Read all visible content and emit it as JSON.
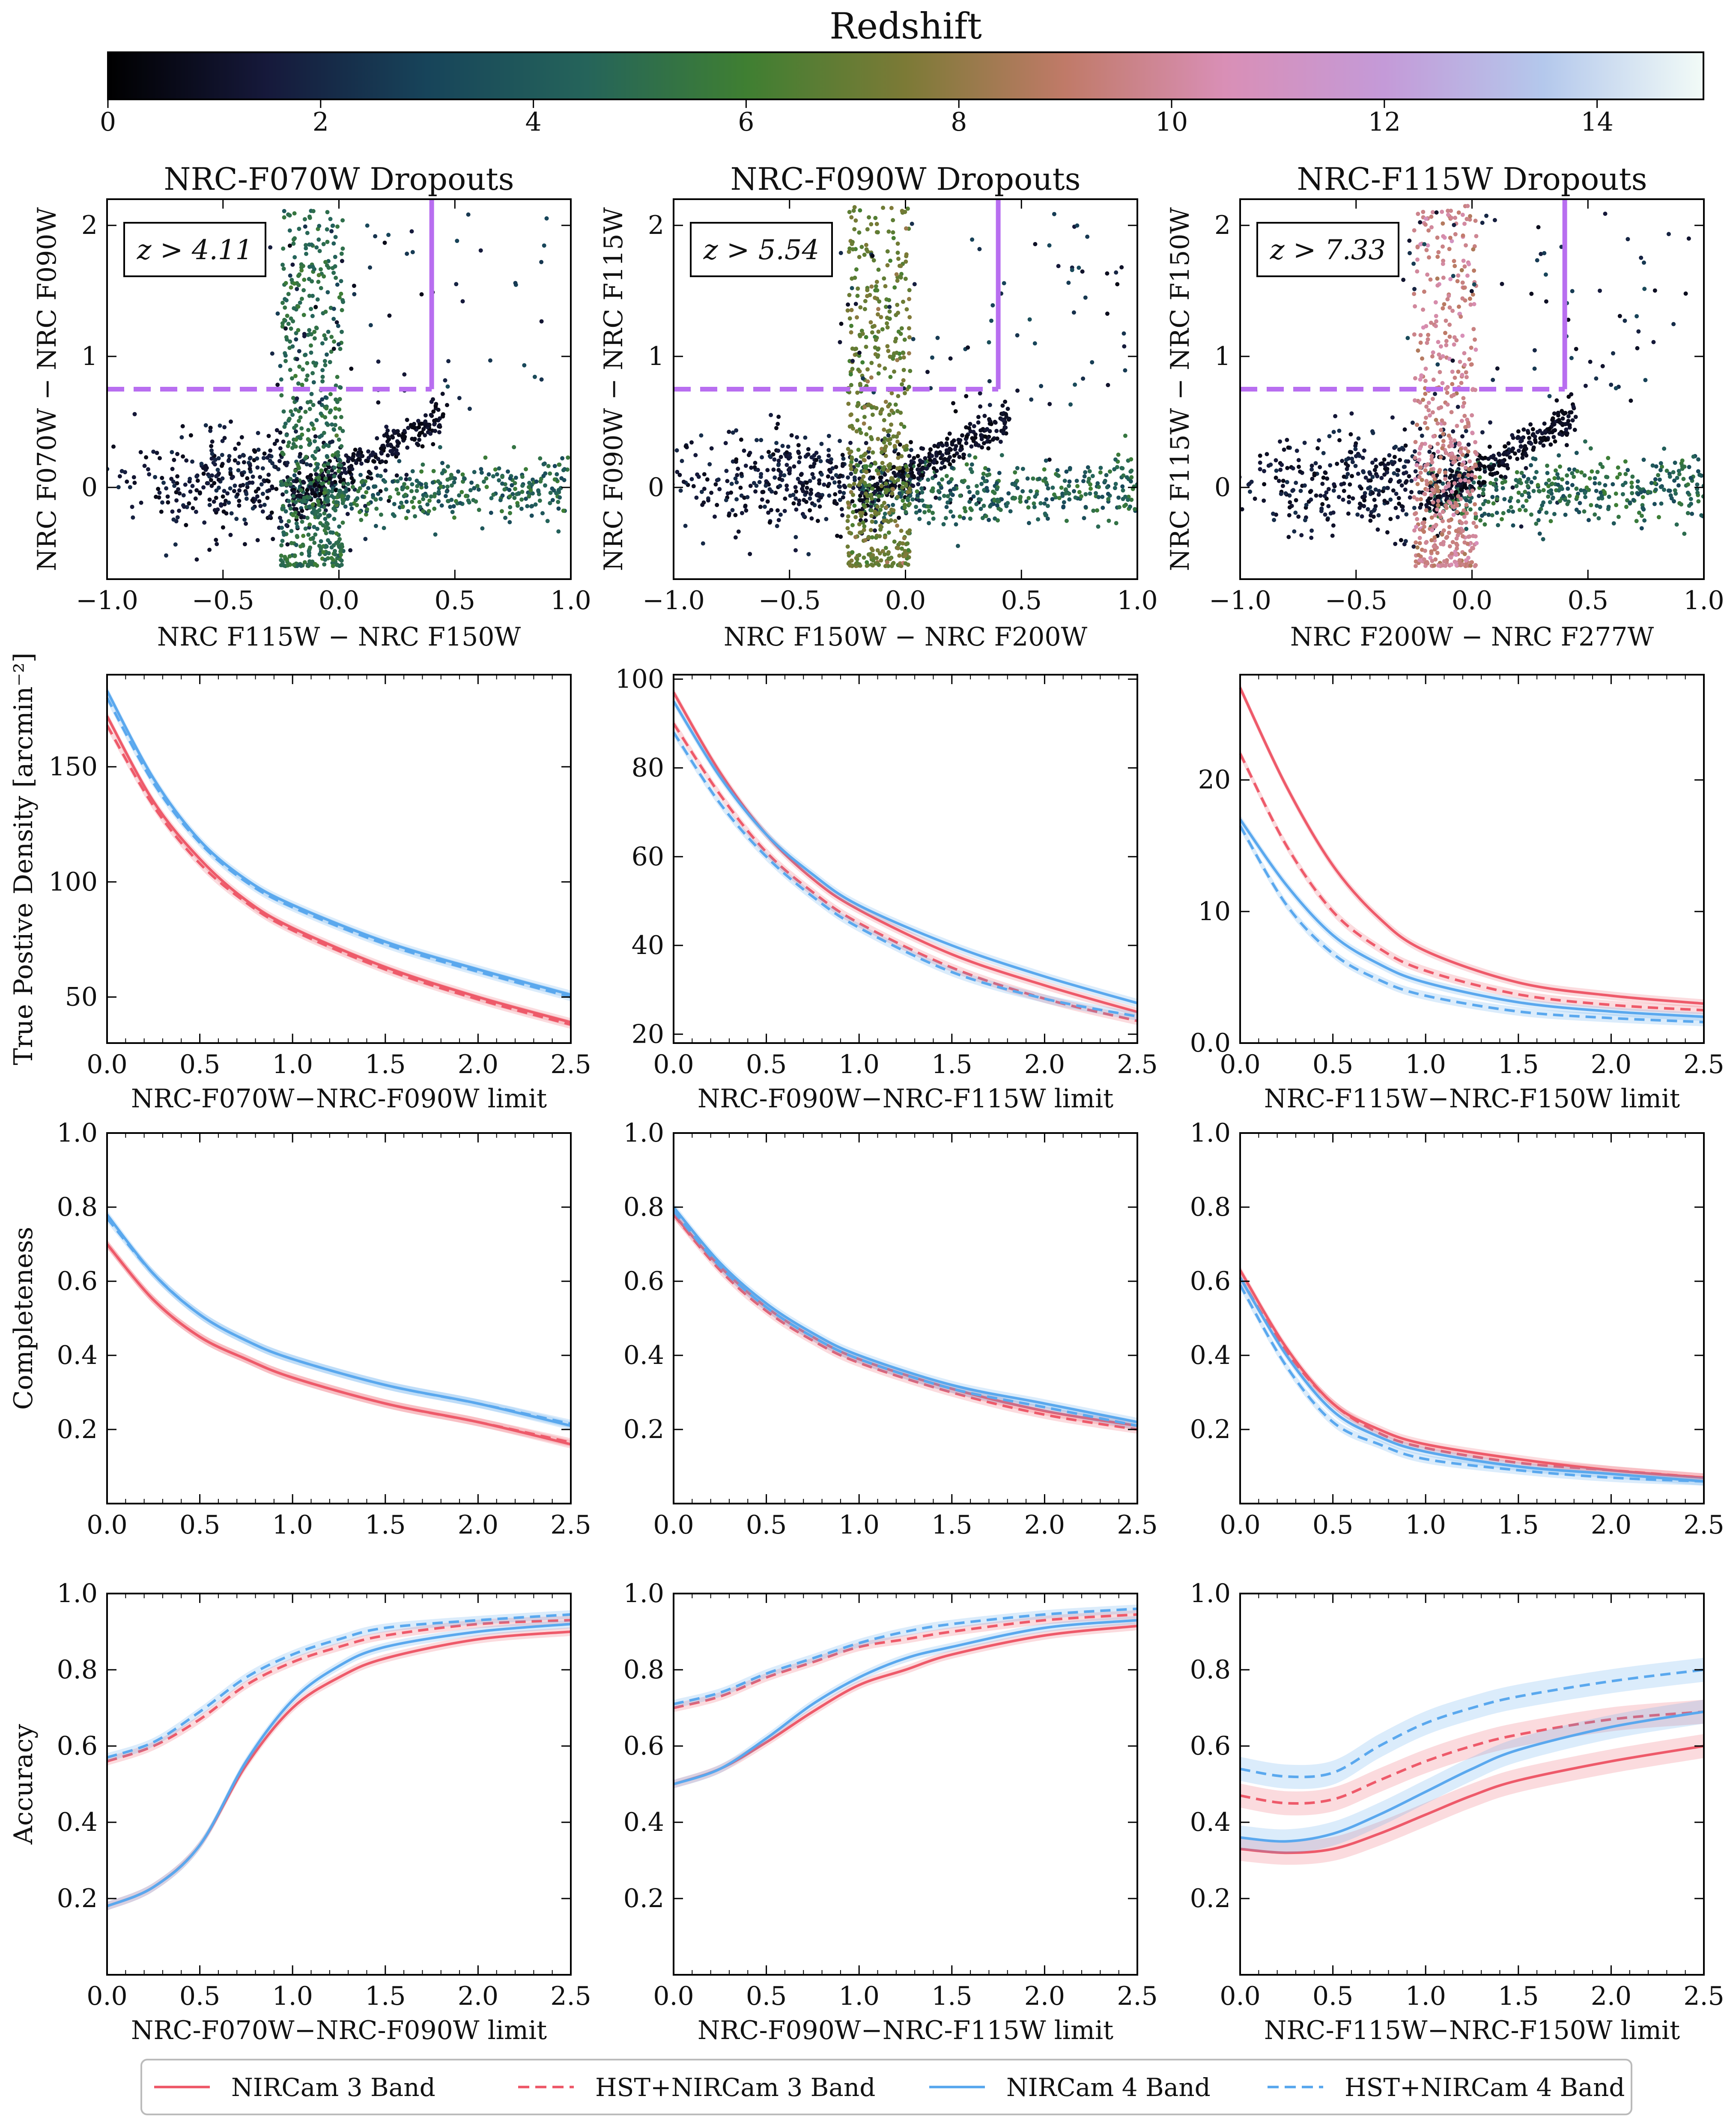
{
  "colorbar": {
    "title": "Redshift",
    "ticks": [
      "0",
      "2",
      "4",
      "6",
      "8",
      "10",
      "12",
      "14"
    ],
    "range": [
      0,
      15
    ],
    "stops": [
      "#000000",
      "#16193b",
      "#17445a",
      "#25645a",
      "#3f7f32",
      "#7c7a36",
      "#c07a68",
      "#d98fb6",
      "#c49ad8",
      "#b4c8ec",
      "#f2fbf7"
    ]
  },
  "colors": {
    "nircam3": "#ee5a6a",
    "hst3": "#ee5a6a",
    "nircam4": "#5aa8ee",
    "hst4": "#5aa8ee",
    "selection": "#b86ef0"
  },
  "legend": {
    "nircam3": "NIRCam 3 Band",
    "hst3": "HST+NIRCam 3 Band",
    "nircam4": "NIRCam 4 Band",
    "hst4": "HST+NIRCam 4 Band"
  },
  "chart_data": [
    {
      "type": "scatter",
      "title": "NRC-F070W Dropouts",
      "xlabel": "NRC F115W − NRC F150W",
      "ylabel": "NRC F070W − NRC F090W",
      "xlim": [
        -1.0,
        1.0
      ],
      "ylim": [
        -0.7,
        2.2
      ],
      "xticks": [
        "−1.0",
        "−0.5",
        "0.0",
        "0.5",
        "1.0"
      ],
      "yticks": [
        "0",
        "1",
        "2"
      ],
      "annotation": "z > 4.11",
      "cut": {
        "color_min": 0.75,
        "x_max": 0.4
      },
      "dropout_z": 5
    },
    {
      "type": "scatter",
      "title": "NRC-F090W Dropouts",
      "xlabel": "NRC F150W − NRC F200W",
      "ylabel": "NRC F090W − NRC F115W",
      "xlim": [
        -1.0,
        1.0
      ],
      "ylim": [
        -0.7,
        2.2
      ],
      "xticks": [
        "−1.0",
        "−0.5",
        "0.0",
        "0.5",
        "1.0"
      ],
      "yticks": [
        "0",
        "1",
        "2"
      ],
      "annotation": "z > 5.54",
      "cut": {
        "color_min": 0.75,
        "x_max": 0.4
      },
      "dropout_z": 7
    },
    {
      "type": "scatter",
      "title": "NRC-F115W Dropouts",
      "xlabel": "NRC F200W − NRC F277W",
      "ylabel": "NRC F115W − NRC F150W",
      "xlim": [
        -1.0,
        1.0
      ],
      "ylim": [
        -0.7,
        2.2
      ],
      "xticks": [
        "−1.0",
        "−0.5",
        "0.0",
        "0.5",
        "1.0"
      ],
      "yticks": [
        "0",
        "1",
        "2"
      ],
      "annotation": "z > 7.33",
      "cut": {
        "color_min": 0.75,
        "x_max": 0.4
      },
      "dropout_z": 9.6
    },
    {
      "type": "line",
      "xlabel": "NRC-F070W−NRC-F090W limit",
      "ylabel": "True Postive Density [arcmin⁻²]",
      "xlim": [
        0,
        2.5
      ],
      "ylim": [
        30,
        190
      ],
      "yticks": [
        50,
        100,
        150
      ],
      "xticks": [
        "0.0",
        "0.5",
        "1.0",
        "1.5",
        "2.0",
        "2.5"
      ],
      "x": [
        0,
        0.25,
        0.5,
        0.75,
        1.0,
        1.5,
        2.0,
        2.5
      ],
      "series": [
        {
          "name": "NIRCam 3 Band",
          "key": "nircam3",
          "dash": false,
          "values": [
            172,
            135,
            110,
            92,
            80,
            63,
            50,
            39
          ]
        },
        {
          "name": "HST+NIRCam 3 Band",
          "key": "hst3",
          "dash": true,
          "values": [
            168,
            133,
            108,
            91,
            79,
            62,
            49,
            38
          ]
        },
        {
          "name": "NIRCam 4 Band",
          "key": "nircam4",
          "dash": false,
          "values": [
            183,
            145,
            118,
            101,
            90,
            74,
            62,
            51
          ]
        },
        {
          "name": "HST+NIRCam 4 Band",
          "key": "hst4",
          "dash": true,
          "values": [
            180,
            143,
            117,
            100,
            89,
            73,
            61,
            50
          ]
        }
      ]
    },
    {
      "type": "line",
      "xlabel": "NRC-F090W−NRC-F115W limit",
      "ylabel": "",
      "xlim": [
        0,
        2.5
      ],
      "ylim": [
        18,
        101
      ],
      "yticks": [
        20,
        40,
        60,
        80,
        100
      ],
      "xticks": [
        "0.0",
        "0.5",
        "1.0",
        "1.5",
        "2.0",
        "2.5"
      ],
      "x": [
        0,
        0.25,
        0.5,
        0.75,
        1.0,
        1.5,
        2.0,
        2.5
      ],
      "series": [
        {
          "name": "NIRCam 3 Band",
          "key": "nircam3",
          "dash": false,
          "values": [
            97,
            79,
            65,
            55,
            48,
            38,
            31,
            25
          ]
        },
        {
          "name": "HST+NIRCam 3 Band",
          "key": "hst3",
          "dash": true,
          "values": [
            90,
            74,
            61,
            52,
            45,
            35,
            28,
            23
          ]
        },
        {
          "name": "NIRCam 4 Band",
          "key": "nircam4",
          "dash": false,
          "values": [
            95,
            78,
            65,
            56,
            49,
            40,
            33,
            27
          ]
        },
        {
          "name": "HST+NIRCam 4 Band",
          "key": "hst4",
          "dash": true,
          "values": [
            88,
            72,
            60,
            51,
            44,
            34,
            28,
            24
          ]
        }
      ]
    },
    {
      "type": "line",
      "xlabel": "NRC-F115W−NRC-F150W limit",
      "ylabel": "",
      "xlim": [
        0,
        2.5
      ],
      "ylim": [
        0,
        28
      ],
      "yticks": [
        0,
        10,
        20
      ],
      "xticks": [
        "0.0",
        "0.5",
        "1.0",
        "1.5",
        "2.0",
        "2.5"
      ],
      "x": [
        0,
        0.25,
        0.5,
        0.75,
        1.0,
        1.5,
        2.0,
        2.5
      ],
      "series": [
        {
          "name": "NIRCam 3 Band",
          "key": "nircam3",
          "dash": false,
          "values": [
            27,
            19.5,
            13.5,
            9.5,
            7.0,
            4.6,
            3.6,
            3.0
          ]
        },
        {
          "name": "HST+NIRCam 3 Band",
          "key": "hst3",
          "dash": true,
          "values": [
            22,
            15,
            10,
            7.2,
            5.5,
            3.7,
            2.9,
            2.5
          ]
        },
        {
          "name": "NIRCam 4 Band",
          "key": "nircam4",
          "dash": false,
          "values": [
            17,
            12,
            8.2,
            6.0,
            4.6,
            3.1,
            2.4,
            2.0
          ]
        },
        {
          "name": "HST+NIRCam 4 Band",
          "key": "hst4",
          "dash": true,
          "values": [
            16.5,
            10.5,
            6.8,
            4.8,
            3.6,
            2.4,
            1.9,
            1.6
          ]
        }
      ]
    },
    {
      "type": "line",
      "xlabel": "",
      "ylabel": "Completeness",
      "xlim": [
        0,
        2.5
      ],
      "ylim": [
        0,
        1.0
      ],
      "yticks": [
        0.2,
        0.4,
        0.6,
        0.8,
        1.0
      ],
      "xticks": [
        "0.0",
        "0.5",
        "1.0",
        "1.5",
        "2.0",
        "2.5"
      ],
      "x": [
        0,
        0.25,
        0.5,
        0.75,
        1.0,
        1.5,
        2.0,
        2.5
      ],
      "series": [
        {
          "name": "NIRCam 3 Band",
          "key": "nircam3",
          "dash": false,
          "values": [
            0.7,
            0.55,
            0.45,
            0.39,
            0.34,
            0.27,
            0.22,
            0.16
          ]
        },
        {
          "name": "HST+NIRCam 3 Band",
          "key": "hst3",
          "dash": true,
          "values": [
            0.7,
            0.55,
            0.45,
            0.39,
            0.34,
            0.27,
            0.22,
            0.165
          ]
        },
        {
          "name": "NIRCam 4 Band",
          "key": "nircam4",
          "dash": false,
          "values": [
            0.78,
            0.62,
            0.51,
            0.44,
            0.39,
            0.32,
            0.27,
            0.21
          ]
        },
        {
          "name": "HST+NIRCam 4 Band",
          "key": "hst4",
          "dash": true,
          "values": [
            0.77,
            0.62,
            0.51,
            0.44,
            0.39,
            0.32,
            0.27,
            0.215
          ]
        }
      ]
    },
    {
      "type": "line",
      "xlabel": "",
      "ylabel": "",
      "xlim": [
        0,
        2.5
      ],
      "ylim": [
        0,
        1.0
      ],
      "yticks": [
        0.2,
        0.4,
        0.6,
        0.8,
        1.0
      ],
      "xticks": [
        "0.0",
        "0.5",
        "1.0",
        "1.5",
        "2.0",
        "2.5"
      ],
      "x": [
        0,
        0.25,
        0.5,
        0.75,
        1.0,
        1.5,
        2.0,
        2.5
      ],
      "series": [
        {
          "name": "NIRCam 3 Band",
          "key": "nircam3",
          "dash": false,
          "values": [
            0.78,
            0.64,
            0.53,
            0.45,
            0.39,
            0.31,
            0.25,
            0.21
          ]
        },
        {
          "name": "HST+NIRCam 3 Band",
          "key": "hst3",
          "dash": true,
          "values": [
            0.78,
            0.63,
            0.52,
            0.44,
            0.38,
            0.3,
            0.24,
            0.2
          ]
        },
        {
          "name": "NIRCam 4 Band",
          "key": "nircam4",
          "dash": false,
          "values": [
            0.8,
            0.65,
            0.54,
            0.46,
            0.4,
            0.32,
            0.27,
            0.22
          ]
        },
        {
          "name": "HST+NIRCam 4 Band",
          "key": "hst4",
          "dash": true,
          "values": [
            0.79,
            0.64,
            0.53,
            0.45,
            0.39,
            0.31,
            0.26,
            0.21
          ]
        }
      ]
    },
    {
      "type": "line",
      "xlabel": "",
      "ylabel": "",
      "xlim": [
        0,
        2.5
      ],
      "ylim": [
        0,
        1.0
      ],
      "yticks": [
        0.2,
        0.4,
        0.6,
        0.8,
        1.0
      ],
      "xticks": [
        "0.0",
        "0.5",
        "1.0",
        "1.5",
        "2.0",
        "2.5"
      ],
      "x": [
        0,
        0.25,
        0.5,
        0.75,
        1.0,
        1.5,
        2.0,
        2.5
      ],
      "series": [
        {
          "name": "NIRCam 3 Band",
          "key": "nircam3",
          "dash": false,
          "values": [
            0.63,
            0.42,
            0.27,
            0.2,
            0.16,
            0.12,
            0.09,
            0.07
          ]
        },
        {
          "name": "HST+NIRCam 3 Band",
          "key": "hst3",
          "dash": true,
          "values": [
            0.61,
            0.41,
            0.27,
            0.19,
            0.15,
            0.11,
            0.09,
            0.07
          ]
        },
        {
          "name": "NIRCam 4 Band",
          "key": "nircam4",
          "dash": false,
          "values": [
            0.61,
            0.4,
            0.25,
            0.18,
            0.14,
            0.1,
            0.08,
            0.06
          ]
        },
        {
          "name": "HST+NIRCam 4 Band",
          "key": "hst4",
          "dash": true,
          "values": [
            0.59,
            0.37,
            0.22,
            0.16,
            0.12,
            0.09,
            0.07,
            0.06
          ]
        }
      ]
    },
    {
      "type": "line",
      "xlabel": "NRC-F070W−NRC-F090W limit",
      "ylabel": "Accuracy",
      "xlim": [
        0,
        2.5
      ],
      "ylim": [
        0,
        1.0
      ],
      "yticks": [
        0.2,
        0.4,
        0.6,
        0.8,
        1.0
      ],
      "xticks": [
        "0.0",
        "0.5",
        "1.0",
        "1.5",
        "2.0",
        "2.5"
      ],
      "x": [
        0,
        0.25,
        0.5,
        0.75,
        1.0,
        1.25,
        1.5,
        2.0,
        2.5
      ],
      "series": [
        {
          "name": "NIRCam 3 Band",
          "key": "nircam3",
          "dash": false,
          "values": [
            0.18,
            0.23,
            0.34,
            0.55,
            0.7,
            0.78,
            0.83,
            0.88,
            0.9
          ]
        },
        {
          "name": "HST+NIRCam 3 Band",
          "key": "hst3",
          "dash": true,
          "values": [
            0.56,
            0.6,
            0.67,
            0.76,
            0.82,
            0.86,
            0.89,
            0.92,
            0.93
          ]
        },
        {
          "name": "NIRCam 4 Band",
          "key": "nircam4",
          "dash": false,
          "values": [
            0.18,
            0.23,
            0.34,
            0.56,
            0.72,
            0.81,
            0.86,
            0.9,
            0.92
          ]
        },
        {
          "name": "HST+NIRCam 4 Band",
          "key": "hst4",
          "dash": true,
          "values": [
            0.57,
            0.61,
            0.69,
            0.78,
            0.84,
            0.88,
            0.91,
            0.93,
            0.945
          ]
        }
      ]
    },
    {
      "type": "line",
      "xlabel": "NRC-F090W−NRC-F115W limit",
      "ylabel": "",
      "xlim": [
        0,
        2.5
      ],
      "ylim": [
        0,
        1.0
      ],
      "yticks": [
        0.2,
        0.4,
        0.6,
        0.8,
        1.0
      ],
      "xticks": [
        "0.0",
        "0.5",
        "1.0",
        "1.5",
        "2.0",
        "2.5"
      ],
      "x": [
        0,
        0.25,
        0.5,
        0.75,
        1.0,
        1.25,
        1.5,
        2.0,
        2.5
      ],
      "series": [
        {
          "name": "NIRCam 3 Band",
          "key": "nircam3",
          "dash": false,
          "values": [
            0.5,
            0.54,
            0.61,
            0.69,
            0.76,
            0.8,
            0.84,
            0.89,
            0.915
          ]
        },
        {
          "name": "HST+NIRCam 3 Band",
          "key": "hst3",
          "dash": true,
          "values": [
            0.7,
            0.73,
            0.78,
            0.82,
            0.86,
            0.88,
            0.9,
            0.93,
            0.945
          ]
        },
        {
          "name": "NIRCam 4 Band",
          "key": "nircam4",
          "dash": false,
          "values": [
            0.5,
            0.54,
            0.62,
            0.71,
            0.78,
            0.83,
            0.86,
            0.91,
            0.93
          ]
        },
        {
          "name": "HST+NIRCam 4 Band",
          "key": "hst4",
          "dash": true,
          "values": [
            0.71,
            0.74,
            0.79,
            0.83,
            0.87,
            0.9,
            0.92,
            0.945,
            0.96
          ]
        }
      ]
    },
    {
      "type": "line",
      "xlabel": "NRC-F115W−NRC-F150W limit",
      "ylabel": "",
      "xlim": [
        0,
        2.5
      ],
      "ylim": [
        0,
        1.0
      ],
      "yticks": [
        0.2,
        0.4,
        0.6,
        0.8,
        1.0
      ],
      "xticks": [
        "0.0",
        "0.5",
        "1.0",
        "1.5",
        "2.0",
        "2.5"
      ],
      "x": [
        0,
        0.25,
        0.5,
        0.75,
        1.0,
        1.25,
        1.5,
        2.0,
        2.5
      ],
      "series": [
        {
          "name": "NIRCam 3 Band",
          "key": "nircam3",
          "dash": false,
          "values": [
            0.33,
            0.32,
            0.33,
            0.37,
            0.42,
            0.47,
            0.51,
            0.56,
            0.6
          ]
        },
        {
          "name": "HST+NIRCam 3 Band",
          "key": "hst3",
          "dash": true,
          "values": [
            0.47,
            0.45,
            0.46,
            0.51,
            0.56,
            0.6,
            0.63,
            0.67,
            0.69
          ]
        },
        {
          "name": "NIRCam 4 Band",
          "key": "nircam4",
          "dash": false,
          "values": [
            0.36,
            0.35,
            0.37,
            0.42,
            0.48,
            0.54,
            0.59,
            0.65,
            0.69
          ]
        },
        {
          "name": "HST+NIRCam 4 Band",
          "key": "hst4",
          "dash": true,
          "values": [
            0.54,
            0.52,
            0.53,
            0.6,
            0.66,
            0.7,
            0.73,
            0.77,
            0.8
          ]
        }
      ]
    }
  ]
}
